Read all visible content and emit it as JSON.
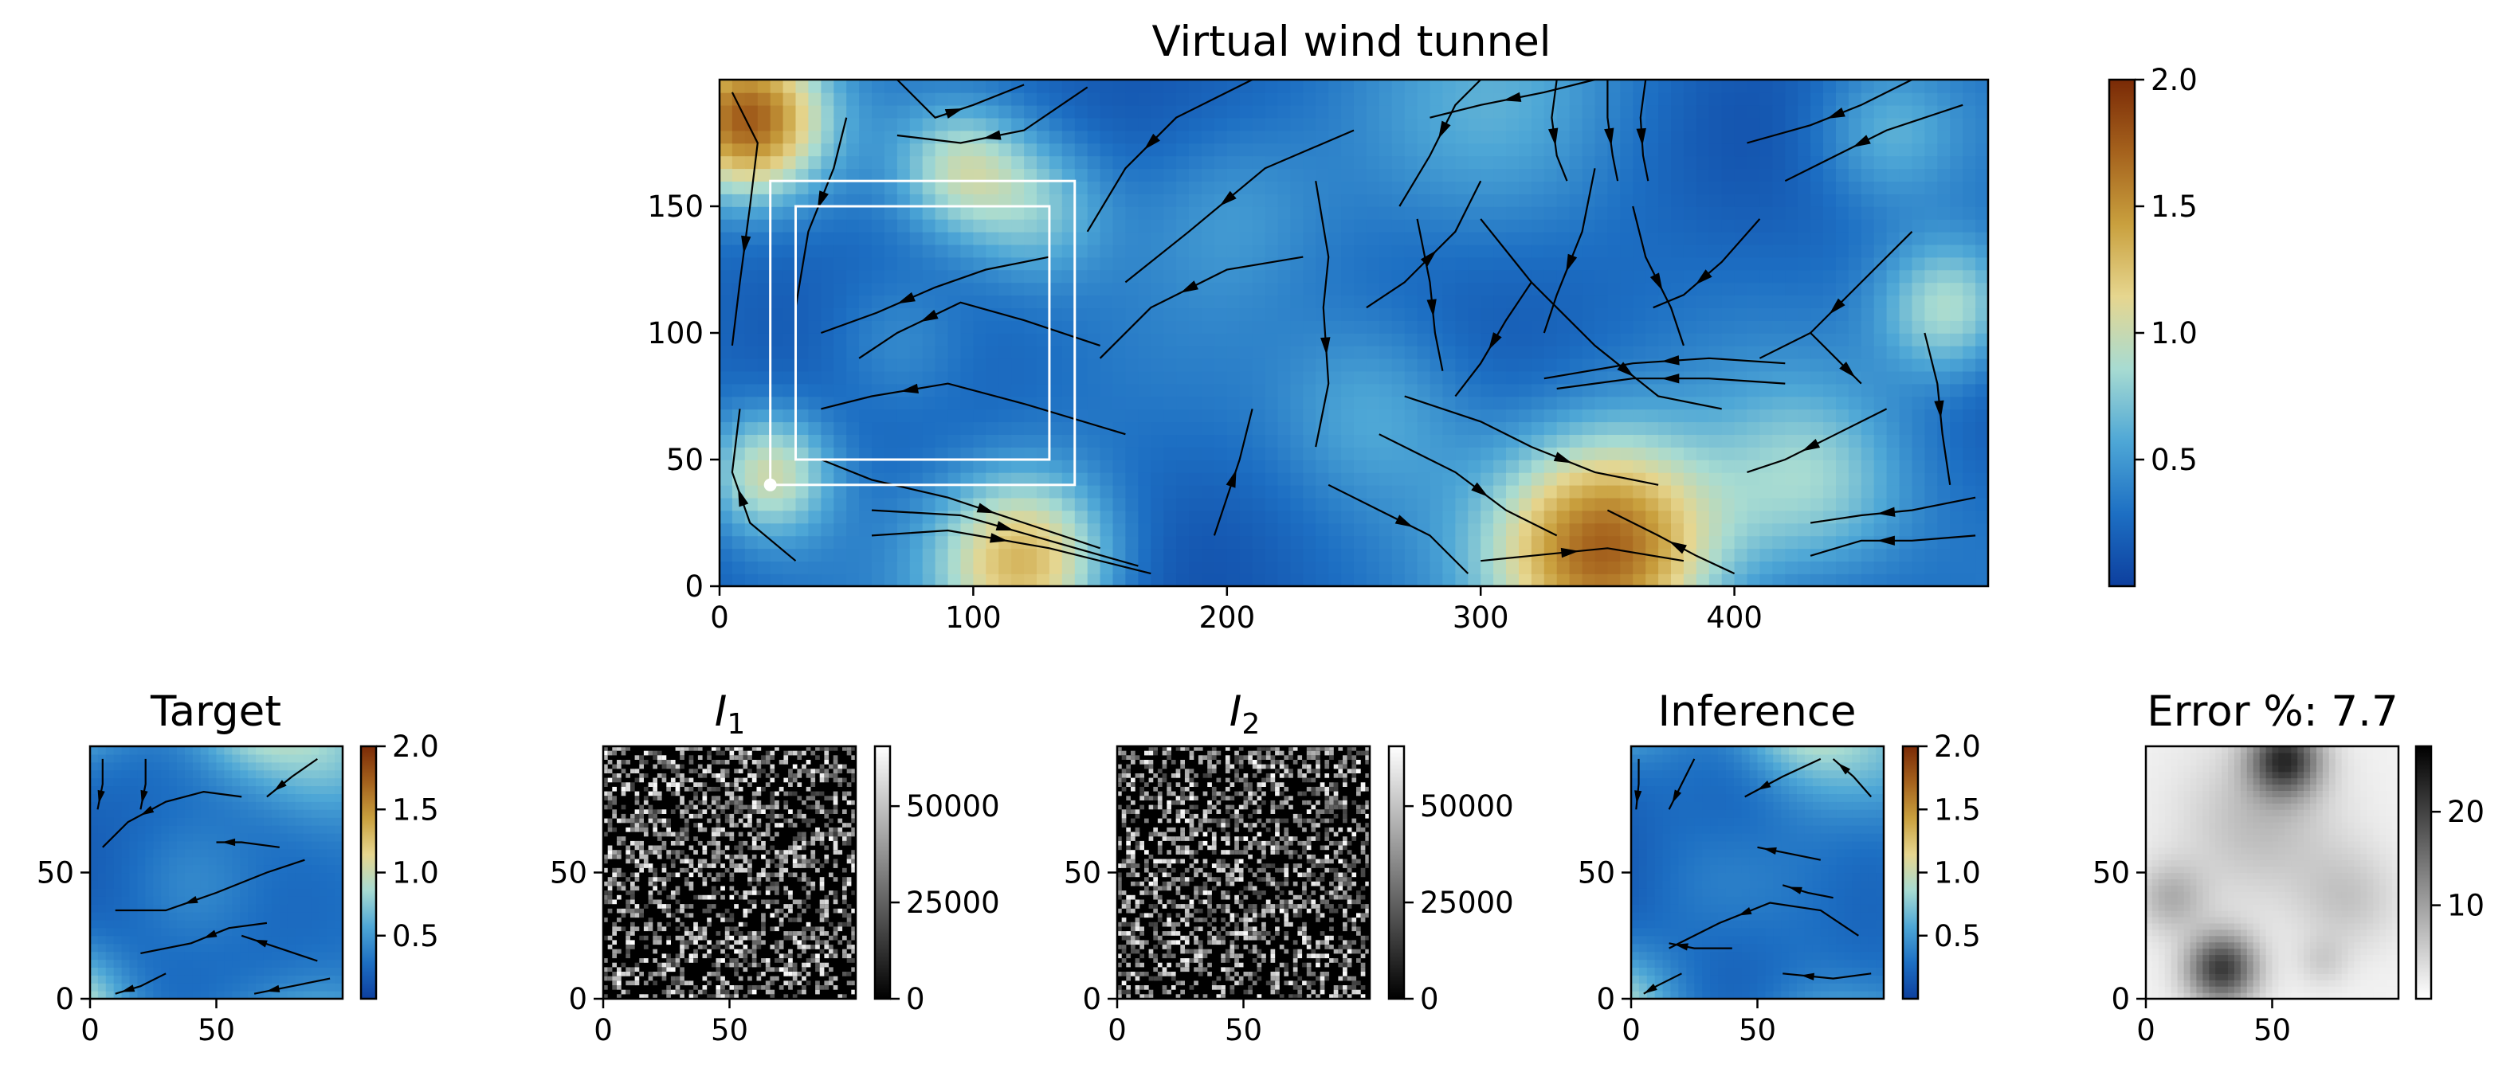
{
  "chart_data": [
    {
      "id": "main",
      "type": "heatmap",
      "title": "Virtual wind tunnel",
      "xlim": [
        0,
        500
      ],
      "ylim": [
        0,
        200
      ],
      "xticks": [
        0,
        100,
        200,
        300,
        400
      ],
      "yticks": [
        0,
        50,
        100,
        150
      ],
      "colormap": "velocity-magnitude",
      "colorbar": {
        "range": [
          0,
          2.0
        ],
        "ticks": [
          0.5,
          1.0,
          1.5,
          2.0
        ],
        "tick_labels": [
          "0.5",
          "1.0",
          "1.5",
          "2.0"
        ]
      },
      "overlays": [
        {
          "kind": "rectangle",
          "x0": 20,
          "y0": 40,
          "x1": 140,
          "y1": 160,
          "color": "#ffffff"
        },
        {
          "kind": "rectangle",
          "x0": 30,
          "y0": 50,
          "x1": 130,
          "y1": 150,
          "color": "#ffffff"
        },
        {
          "kind": "point",
          "x": 20,
          "y": 40,
          "color": "#ffffff"
        }
      ]
    },
    {
      "id": "target",
      "type": "heatmap",
      "title": "Target",
      "xlim": [
        0,
        100
      ],
      "ylim": [
        0,
        100
      ],
      "xticks": [
        0,
        50
      ],
      "yticks": [
        0,
        50
      ],
      "colormap": "velocity-magnitude",
      "colorbar": {
        "range": [
          0,
          2.0
        ],
        "ticks": [
          0.5,
          1.0,
          1.5,
          2.0
        ],
        "tick_labels": [
          "0.5",
          "1.0",
          "1.5",
          "2.0"
        ]
      }
    },
    {
      "id": "i1",
      "type": "heatmap",
      "title_main": "I",
      "title_sub": "1",
      "xlim": [
        0,
        100
      ],
      "ylim": [
        0,
        100
      ],
      "xticks": [
        0,
        50
      ],
      "yticks": [
        0,
        50
      ],
      "colormap": "gray",
      "colorbar": {
        "range": [
          0,
          65535
        ],
        "ticks": [
          0,
          25000,
          50000
        ],
        "tick_labels": [
          "0",
          "25000",
          "50000"
        ]
      }
    },
    {
      "id": "i2",
      "type": "heatmap",
      "title_main": "I",
      "title_sub": "2",
      "xlim": [
        0,
        100
      ],
      "ylim": [
        0,
        100
      ],
      "xticks": [
        0,
        50
      ],
      "yticks": [
        0,
        50
      ],
      "colormap": "gray",
      "colorbar": {
        "range": [
          0,
          65535
        ],
        "ticks": [
          0,
          25000,
          50000
        ],
        "tick_labels": [
          "0",
          "25000",
          "50000"
        ]
      }
    },
    {
      "id": "inference",
      "type": "heatmap",
      "title": "Inference",
      "xlim": [
        0,
        100
      ],
      "ylim": [
        0,
        100
      ],
      "xticks": [
        0,
        50
      ],
      "yticks": [
        0,
        50
      ],
      "colormap": "velocity-magnitude",
      "colorbar": {
        "range": [
          0,
          2.0
        ],
        "ticks": [
          0.5,
          1.0,
          1.5,
          2.0
        ],
        "tick_labels": [
          "0.5",
          "1.0",
          "1.5",
          "2.0"
        ]
      }
    },
    {
      "id": "error",
      "type": "heatmap",
      "title": "Error %: 7.7",
      "xlim": [
        0,
        100
      ],
      "ylim": [
        0,
        100
      ],
      "xticks": [
        0,
        50
      ],
      "yticks": [
        0,
        50
      ],
      "colormap": "gray-reversed",
      "colorbar": {
        "range": [
          0,
          27
        ],
        "ticks": [
          10,
          20
        ],
        "tick_labels": [
          "10",
          "20"
        ]
      }
    }
  ],
  "colors": {
    "velocity_colormap": [
      "#0d3f9e",
      "#1d6fc3",
      "#4ea7d6",
      "#a7dbd2",
      "#e6d68f",
      "#c9a03e",
      "#a5621d",
      "#7a2a06"
    ],
    "overlay": "#ffffff",
    "streamline": "#000000"
  }
}
